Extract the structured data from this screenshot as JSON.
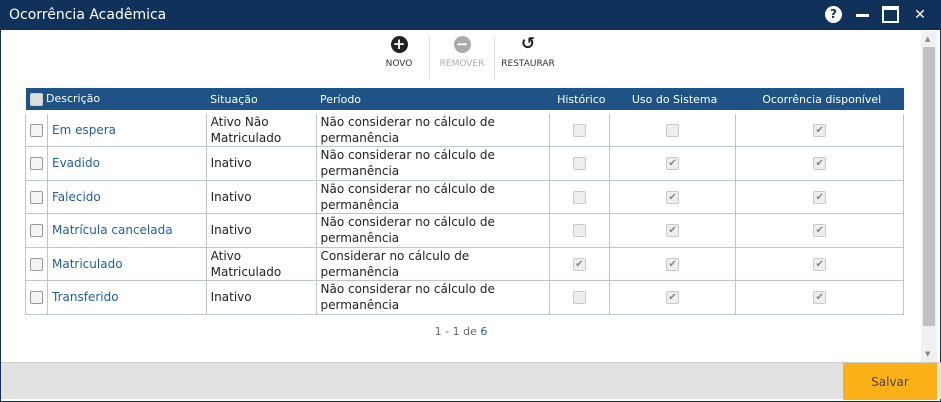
{
  "window": {
    "title": "Ocorrência Acadêmica",
    "help": "?",
    "close": "✕"
  },
  "toolbar": {
    "novo": "NOVO",
    "remover": "REMOVER",
    "restaurar": "RESTAURAR"
  },
  "table": {
    "headers": [
      "Descrição",
      "Situação",
      "Período",
      "Histórico",
      "Uso do Sistema",
      "Ocorrência disponível"
    ],
    "rows": [
      {
        "descricao": "Em espera",
        "situacao": "Ativo Não Matriculado",
        "periodo": "Não considerar no cálculo de permanência",
        "historico": false,
        "uso": false,
        "disponivel": true
      },
      {
        "descricao": "Evadido",
        "situacao": "Inativo",
        "periodo": "Não considerar no cálculo de permanência",
        "historico": false,
        "uso": true,
        "disponivel": true
      },
      {
        "descricao": "Falecido",
        "situacao": "Inativo",
        "periodo": "Não considerar no cálculo de permanência",
        "historico": false,
        "uso": true,
        "disponivel": true
      },
      {
        "descricao": "Matrícula cancelada",
        "situacao": "Inativo",
        "periodo": "Não considerar no cálculo de permanência",
        "historico": false,
        "uso": true,
        "disponivel": true
      },
      {
        "descricao": "Matriculado",
        "situacao": "Ativo Matriculado",
        "periodo": "Considerar no cálculo de permanência",
        "historico": true,
        "uso": true,
        "disponivel": true
      },
      {
        "descricao": "Transferido",
        "situacao": "Inativo",
        "periodo": "Não considerar no cálculo de permanência",
        "historico": false,
        "uso": true,
        "disponivel": true
      }
    ]
  },
  "pagination": {
    "range": "1 - 1 de",
    "total": "6"
  },
  "footer": {
    "save": "Salvar"
  },
  "colors": {
    "titlebar": "#10325a",
    "header": "#1f5386",
    "save": "#fbb117",
    "link": "#1f5f9e"
  }
}
